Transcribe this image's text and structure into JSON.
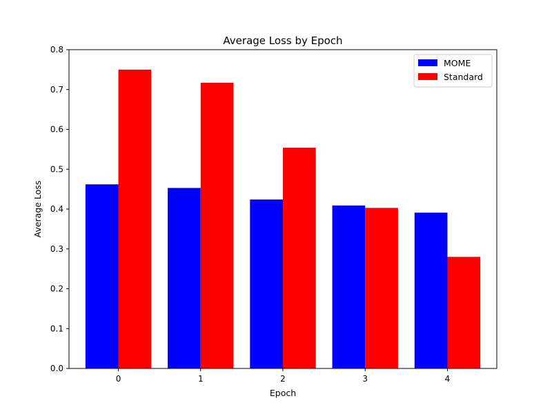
{
  "chart_data": {
    "type": "bar",
    "title": "Average Loss by Epoch",
    "xlabel": "Epoch",
    "ylabel": "Average Loss",
    "categories": [
      "0",
      "1",
      "2",
      "3",
      "4"
    ],
    "series": [
      {
        "name": "MOME",
        "color": "#0000ff",
        "values": [
          0.462,
          0.453,
          0.424,
          0.409,
          0.391
        ]
      },
      {
        "name": "Standard",
        "color": "#ff0000",
        "values": [
          0.75,
          0.717,
          0.554,
          0.403,
          0.28
        ]
      }
    ],
    "ylim": [
      0,
      0.8
    ],
    "yticks": [
      0.0,
      0.1,
      0.2,
      0.3,
      0.4,
      0.5,
      0.6,
      0.7,
      0.8
    ],
    "ytick_labels": [
      "0.0",
      "0.1",
      "0.2",
      "0.3",
      "0.4",
      "0.5",
      "0.6",
      "0.7",
      "0.8"
    ],
    "grid": false,
    "legend": "top-right"
  }
}
